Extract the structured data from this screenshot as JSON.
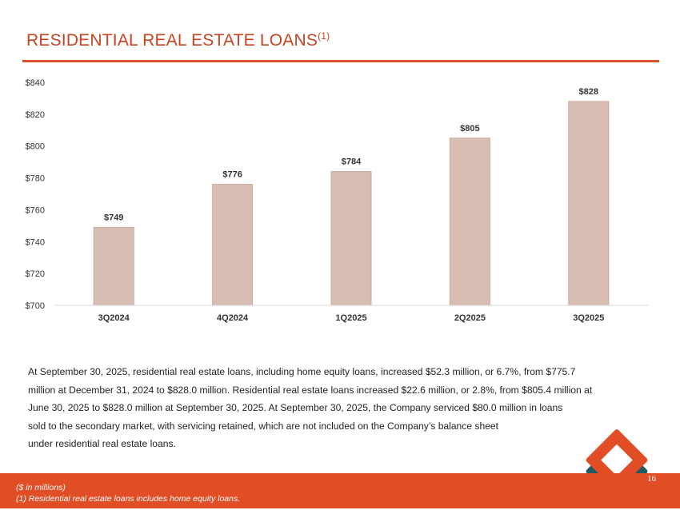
{
  "header": {
    "title": "RESIDENTIAL REAL ESTATE LOANS",
    "title_superscript": "(1)"
  },
  "chart_data": {
    "type": "bar",
    "categories": [
      "3Q2024",
      "4Q2024",
      "1Q2025",
      "2Q2025",
      "3Q2025"
    ],
    "values": [
      749,
      776,
      784,
      805,
      828
    ],
    "data_labels": [
      "$749",
      "$776",
      "$784",
      "$805",
      "$828"
    ],
    "ylim": [
      700,
      840
    ],
    "y_ticks": [
      700,
      720,
      740,
      760,
      780,
      800,
      820,
      840
    ],
    "y_tick_labels": [
      "$700",
      "$720",
      "$740",
      "$760",
      "$780",
      "$800",
      "$820",
      "$840"
    ],
    "grid": false,
    "bar_color": "#d8bdb2"
  },
  "body": {
    "lines": [
      "At September 30, 2025, residential real estate loans, including home equity loans, increased $52.3 million, or 6.7%, from $775.7",
      "million at December 31, 2024 to $828.0 million. Residential real estate loans increased $22.6 million, or 2.8%, from $805.4 million at",
      "June 30, 2025 to $828.0 million at September 30, 2025. At September 30, 2025, the Company serviced $80.0 million in loans",
      "sold to the secondary market, with servicing retained, which are not included on the Company’s balance sheet",
      "under residential real estate loans."
    ]
  },
  "footer": {
    "note_units": "($ in millions)",
    "note_definition": "(1) Residential real estate loans includes home equity loans.",
    "page_number": "16"
  },
  "colors": {
    "accent": "#e14d24",
    "title": "#c8431f",
    "logo_teal": "#1f5b63",
    "logo_orange": "#e14d24"
  }
}
